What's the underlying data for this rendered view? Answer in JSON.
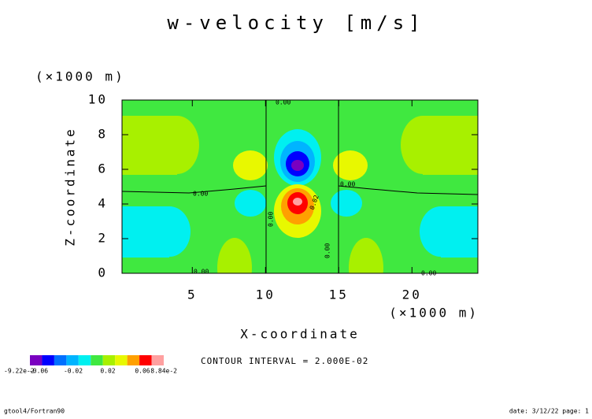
{
  "chart_data": {
    "type": "contour",
    "title": "w-velocity [m/s]",
    "x_label": "X-coordinate",
    "y_label": "Z-coordinate",
    "x_unit": "(×1000 m)",
    "y_unit": "(×1000 m)",
    "xlim": [
      0.2,
      24.5
    ],
    "ylim": [
      0,
      10
    ],
    "xticks": [
      5,
      10,
      15,
      20
    ],
    "yticks": [
      0,
      2,
      4,
      6,
      8,
      10
    ],
    "colorbar": {
      "colors": [
        "#7a00c0",
        "#0000ff",
        "#0070ff",
        "#00b4ff",
        "#00f0f0",
        "#40e840",
        "#a8f000",
        "#e8f800",
        "#ffa000",
        "#ff0000",
        "#ffa0a0"
      ],
      "labels": [
        "-9.22e-2",
        "-0.06",
        "-0.02",
        "0.02",
        "0.06",
        "8.84e-2"
      ]
    },
    "contour_labels": [
      "0.00",
      "0.00",
      "0.00",
      "0.00",
      "0.00",
      "0.00",
      "0.00",
      "0.02"
    ],
    "contour_interval": "CONTOUR INTERVAL = 2.000E-02",
    "footer_left": "gtool4/Fortran90",
    "footer_right": "date: 3/12/22 page: 1"
  }
}
